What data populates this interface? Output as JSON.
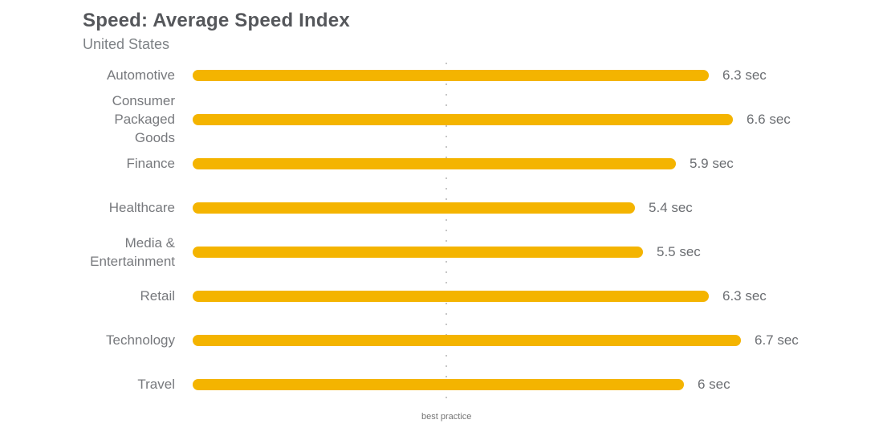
{
  "header": {
    "title": "Speed: Average Speed Index",
    "subtitle": "United States"
  },
  "chart_data": {
    "type": "bar",
    "orientation": "horizontal",
    "title": "Speed: Average Speed Index",
    "subtitle": "United States",
    "unit": "sec",
    "categories": [
      "Automotive",
      "Consumer Packaged Goods",
      "Finance",
      "Healthcare",
      "Media & Entertainment",
      "Retail",
      "Technology",
      "Travel"
    ],
    "values": [
      6.3,
      6.6,
      5.9,
      5.4,
      5.5,
      6.3,
      6.7,
      6
    ],
    "value_labels": [
      "6.3 sec",
      "6.6 sec",
      "5.9 sec",
      "5.4 sec",
      "5.5 sec",
      "6.3 sec",
      "6.7 sec",
      "6 sec"
    ],
    "benchmark": {
      "label": "best practice",
      "value": 3.1
    },
    "xlim": [
      0,
      6.9
    ],
    "grid": "off",
    "legend": "none",
    "bar_color": "#F4B400"
  },
  "colors": {
    "bar": "#F4B400",
    "title_text": "#55575b",
    "subtitle_text": "#7e8286",
    "category_text": "#77797d",
    "value_text": "#6b6e72",
    "benchmark_line": "#c6c6c6",
    "benchmark_text": "#757575",
    "background": "#ffffff"
  }
}
